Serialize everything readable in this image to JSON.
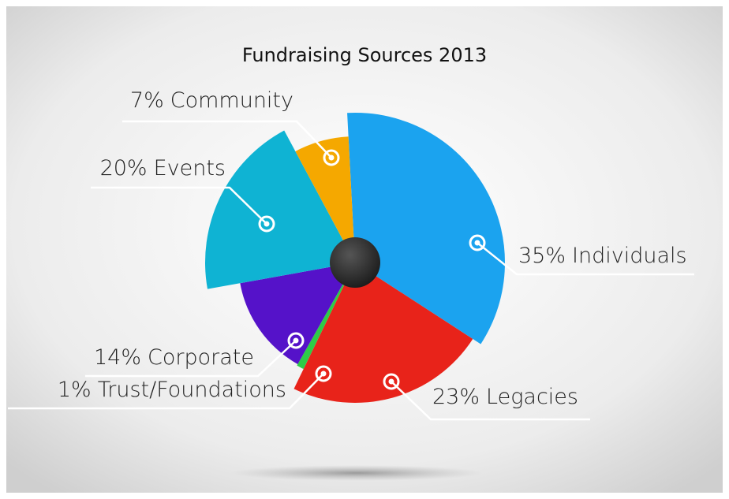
{
  "chart_data": {
    "type": "pie",
    "title": "Fundraising Sources 2013",
    "categories": [
      "Individuals",
      "Legacies",
      "Trust/Foundations",
      "Corporate",
      "Events",
      "Community"
    ],
    "values": [
      35,
      23,
      1,
      14,
      20,
      7
    ],
    "value_labels": [
      "35%",
      "23%",
      "1%",
      "14%",
      "20%",
      "7%"
    ],
    "colors": [
      "#1ba3ef",
      "#e8231a",
      "#2ecc47",
      "#5512c9",
      "#0fb3d3",
      "#f5a800"
    ]
  }
}
